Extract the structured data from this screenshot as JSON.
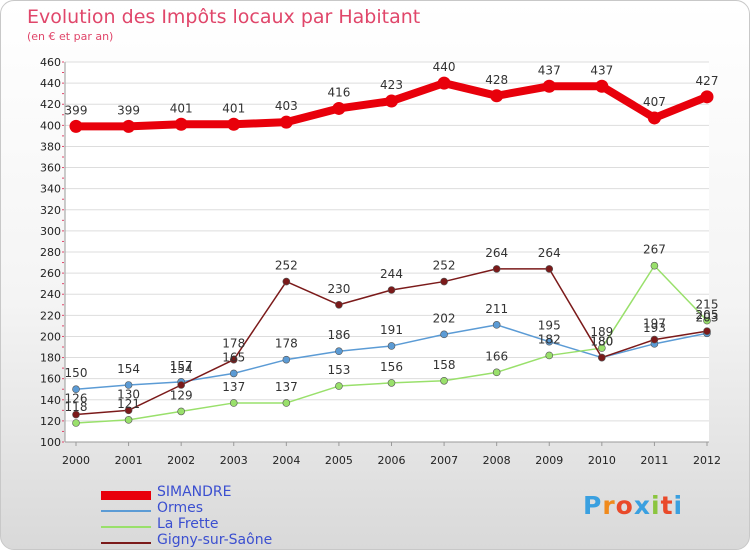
{
  "title": "Evolution des Impôts locaux par Habitant",
  "subtitle": "(en € et par an)",
  "logo": {
    "text": "Proxiti",
    "colors": [
      "#3aa0e0",
      "#f08a1c",
      "#e94a2a",
      "#3aa0e0",
      "#8bc53f",
      "#e94a2a",
      "#3aa0e0"
    ]
  },
  "chart_data": {
    "type": "line",
    "title": "Evolution des Impôts locaux par Habitant",
    "subtitle": "(en € et par an)",
    "xlabel": "",
    "ylabel": "",
    "categories": [
      "2000",
      "2001",
      "2002",
      "2003",
      "2004",
      "2005",
      "2006",
      "2007",
      "2008",
      "2009",
      "2010",
      "2011",
      "2012"
    ],
    "ylim": [
      100,
      460
    ],
    "ytick_step": 20,
    "grid": "horizontal",
    "legend_position": "bottom-left",
    "series": [
      {
        "name": "SIMANDRE",
        "color": "#e8000b",
        "weight": "thick",
        "values": [
          399,
          399,
          401,
          401,
          403,
          416,
          423,
          440,
          428,
          437,
          437,
          407,
          427
        ]
      },
      {
        "name": "Ormes",
        "color": "#5b9bd5",
        "weight": "thin",
        "values": [
          150,
          154,
          157,
          165,
          178,
          186,
          191,
          202,
          211,
          195,
          180,
          193,
          203
        ]
      },
      {
        "name": "La Frette",
        "color": "#99e06b",
        "weight": "thin",
        "values": [
          118,
          121,
          129,
          137,
          137,
          153,
          156,
          158,
          166,
          182,
          189,
          267,
          215
        ]
      },
      {
        "name": "Gigny-sur-Saône",
        "color": "#7b1a1a",
        "weight": "thin",
        "values": [
          126,
          130,
          154,
          178,
          252,
          230,
          244,
          252,
          264,
          264,
          180,
          197,
          205
        ]
      }
    ],
    "value_labels": [
      {
        "series": "SIMANDRE",
        "labels": [
          "399",
          "399",
          "401",
          "401",
          "403",
          "416",
          "423",
          "440",
          "428",
          "437",
          "437",
          "407",
          "427"
        ]
      },
      {
        "series": "Ormes",
        "labels": [
          "150",
          "154",
          "157",
          "165",
          "178",
          "186",
          "191",
          "202",
          "211",
          "195",
          "180",
          "193",
          "203"
        ]
      },
      {
        "series": "La Frette",
        "labels": [
          "118",
          "121",
          "129",
          "137",
          "137",
          "153",
          "156",
          "158",
          "166",
          "182",
          "189",
          "267",
          "215"
        ]
      },
      {
        "series": "Gigny-sur-Saône",
        "labels": [
          "126",
          "130",
          "154",
          "178",
          "252",
          "230",
          "244",
          "252",
          "264",
          "264",
          "180",
          "197",
          "205"
        ]
      }
    ]
  }
}
